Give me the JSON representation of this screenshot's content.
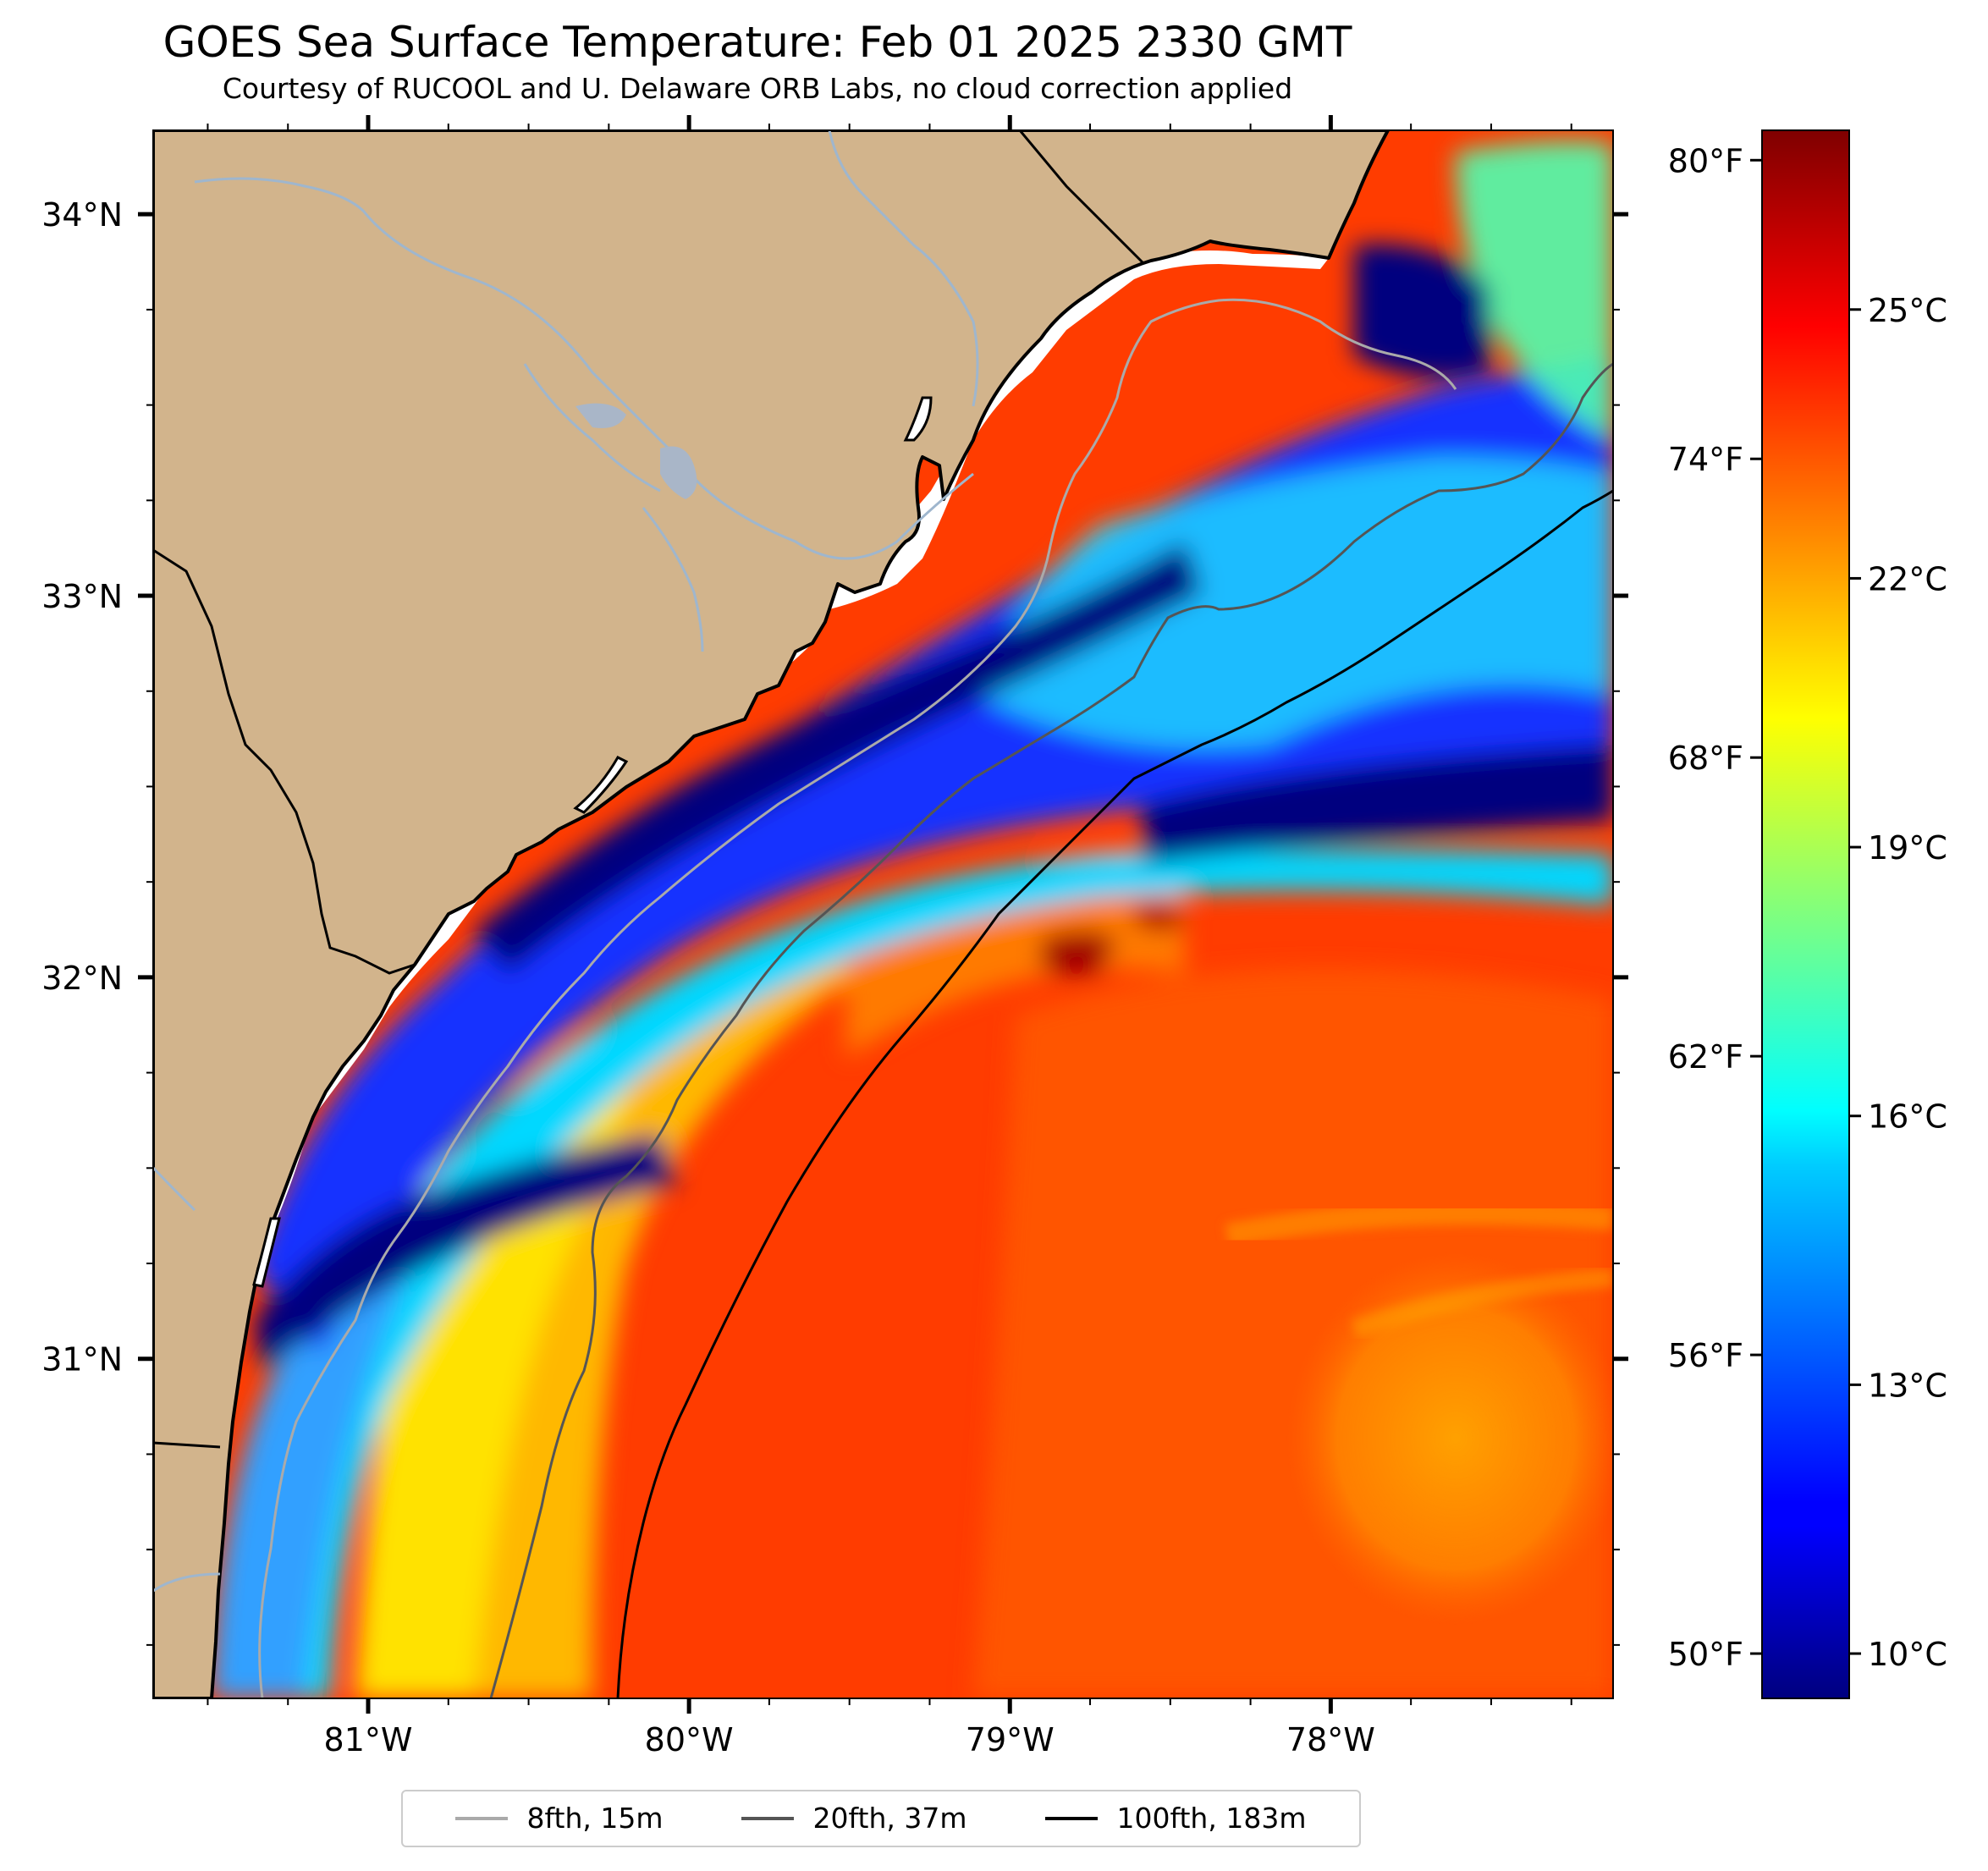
{
  "title": "GOES Sea Surface Temperature: Feb 01 2025 2330 GMT",
  "subtitle": "Courtesy of RUCOOL and U. Delaware ORB Labs, no cloud correction applied",
  "map": {
    "lon_range": [
      -81.67,
      -77.12
    ],
    "lat_range": [
      30.11,
      34.22
    ],
    "lon_ticks": [
      {
        "value": -81,
        "label": "81°W"
      },
      {
        "value": -80,
        "label": "80°W"
      },
      {
        "value": -79,
        "label": "79°W"
      },
      {
        "value": -78,
        "label": "78°W"
      }
    ],
    "lat_ticks": [
      {
        "value": 34,
        "label": "34°N"
      },
      {
        "value": 33,
        "label": "33°N"
      },
      {
        "value": 32,
        "label": "32°N"
      },
      {
        "value": 31,
        "label": "31°N"
      }
    ],
    "colors": {
      "land": "#d2b48c",
      "rivers": "#9fb6cd",
      "state_borders": "#000000",
      "no_data": "#ffffff"
    }
  },
  "colorbar": {
    "colormap": "jet",
    "range_celsius": [
      9.5,
      27.0
    ],
    "fahrenheit_ticks": [
      {
        "value": 50,
        "label": "50°F"
      },
      {
        "value": 56,
        "label": "56°F"
      },
      {
        "value": 62,
        "label": "62°F"
      },
      {
        "value": 68,
        "label": "68°F"
      },
      {
        "value": 74,
        "label": "74°F"
      },
      {
        "value": 80,
        "label": "80°F"
      }
    ],
    "celsius_ticks": [
      {
        "value": 10,
        "label": "10°C"
      },
      {
        "value": 13,
        "label": "13°C"
      },
      {
        "value": 16,
        "label": "16°C"
      },
      {
        "value": 19,
        "label": "19°C"
      },
      {
        "value": 22,
        "label": "22°C"
      },
      {
        "value": 25,
        "label": "25°C"
      }
    ]
  },
  "legend": {
    "placement": "bottom-center",
    "entries": [
      {
        "label": "8fth, 15m",
        "color": "#aaaaaa"
      },
      {
        "label": "20fth, 37m",
        "color": "#555555"
      },
      {
        "label": "100fth, 183m",
        "color": "#000000"
      }
    ]
  }
}
